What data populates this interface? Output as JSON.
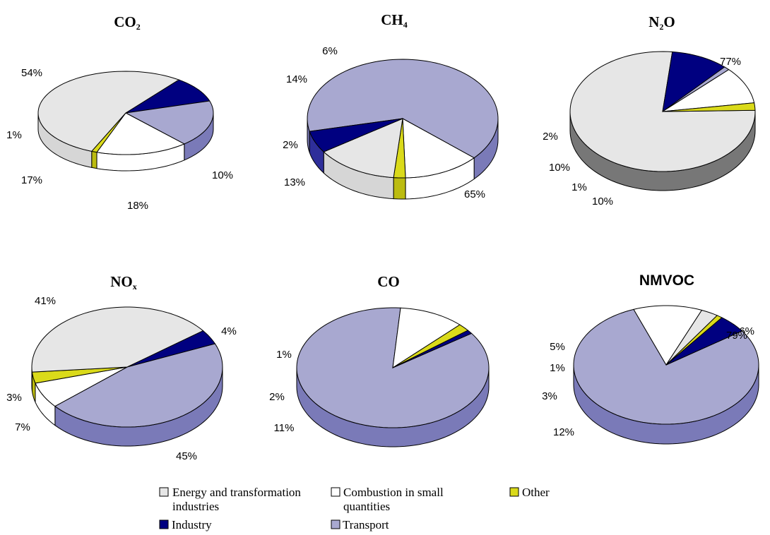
{
  "legend": {
    "items": [
      {
        "key": "energy",
        "label_lines": [
          "Energy and transformation",
          "industries"
        ],
        "color": "#e6e6e6"
      },
      {
        "key": "small",
        "label_lines": [
          "Combustion in small",
          "quantities"
        ],
        "color": "#ffffff"
      },
      {
        "key": "other",
        "label_lines": [
          "Other"
        ],
        "color": "#dada1a"
      },
      {
        "key": "industry",
        "label_lines": [
          "Industry"
        ],
        "color": "#000080"
      },
      {
        "key": "transport",
        "label_lines": [
          "Transport"
        ],
        "color": "#a8a8d0"
      }
    ]
  },
  "chart_data": [
    {
      "type": "pie",
      "title": "CO",
      "title_sub": "2",
      "slices": [
        {
          "key": "industry",
          "value": 10,
          "label": "10%"
        },
        {
          "key": "transport",
          "value": 18,
          "label": "18%"
        },
        {
          "key": "small",
          "value": 17,
          "label": "17%"
        },
        {
          "key": "other",
          "value": 1,
          "label": "1%"
        },
        {
          "key": "energy",
          "value": 54,
          "label": "54%"
        }
      ]
    },
    {
      "type": "pie",
      "title": "CH",
      "title_sub": "4",
      "slices": [
        {
          "key": "transport",
          "value": 65,
          "label": "65%"
        },
        {
          "key": "small",
          "value": 13,
          "label": "13%"
        },
        {
          "key": "other",
          "value": 2,
          "label": "2%"
        },
        {
          "key": "energy",
          "value": 14,
          "label": "14%"
        },
        {
          "key": "industry",
          "value": 6,
          "label": "6%"
        }
      ]
    },
    {
      "type": "pie",
      "title": "N",
      "title_sub": "2",
      "title_after": "O",
      "slices": [
        {
          "key": "energy",
          "value": 77,
          "label": "77%"
        },
        {
          "key": "industry",
          "value": 10,
          "label": "10%"
        },
        {
          "key": "transport",
          "value": 1,
          "label": "1%"
        },
        {
          "key": "small",
          "value": 10,
          "label": "10%"
        },
        {
          "key": "other",
          "value": 2,
          "label": "2%"
        }
      ]
    },
    {
      "type": "pie",
      "title": "NO",
      "title_sub": "x",
      "slices": [
        {
          "key": "industry",
          "value": 4,
          "label": "4%"
        },
        {
          "key": "transport",
          "value": 45,
          "label": "45%"
        },
        {
          "key": "small",
          "value": 7,
          "label": "7%"
        },
        {
          "key": "other",
          "value": 3,
          "label": "3%"
        },
        {
          "key": "energy",
          "value": 41,
          "label": "41%"
        }
      ]
    },
    {
      "type": "pie",
      "title": "CO",
      "slices": [
        {
          "key": "transport",
          "value": 86,
          "label": "86%"
        },
        {
          "key": "small",
          "value": 11,
          "label": "11%"
        },
        {
          "key": "other",
          "value": 2,
          "label": "2%"
        },
        {
          "key": "industry",
          "value": 1,
          "label": "1%"
        }
      ]
    },
    {
      "type": "pie",
      "title": "NMVOC",
      "title_font": "sans",
      "slices": [
        {
          "key": "transport",
          "value": 79,
          "label": "79%"
        },
        {
          "key": "small",
          "value": 12,
          "label": "12%"
        },
        {
          "key": "energy",
          "value": 3,
          "label": "3%"
        },
        {
          "key": "other",
          "value": 1,
          "label": "1%"
        },
        {
          "key": "industry",
          "value": 5,
          "label": "5%"
        }
      ]
    }
  ]
}
